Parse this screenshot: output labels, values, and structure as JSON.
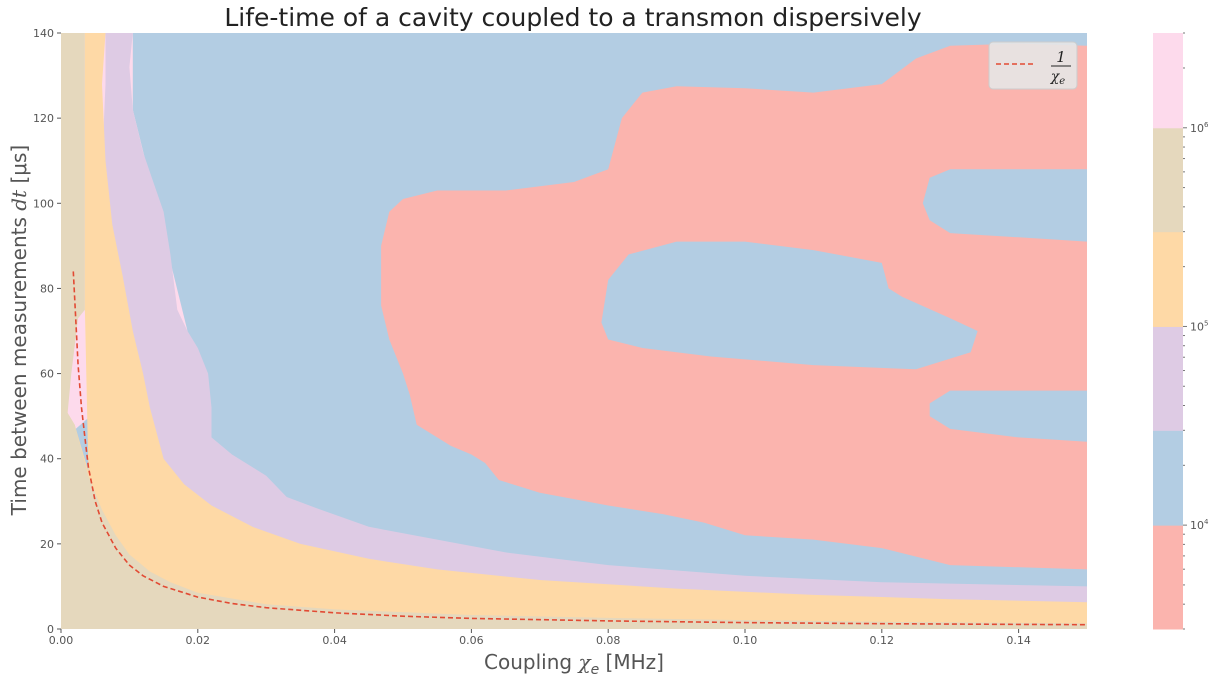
{
  "chart_data": {
    "type": "contour",
    "title": "Life-time of a cavity coupled to a transmon dispersively",
    "xlabel_prefix": "Coupling ",
    "xlabel_symbol": "χ",
    "xlabel_sub": "e",
    "xlabel_suffix": " [MHz]",
    "ylabel_prefix": "Time between measurements ",
    "ylabel_symbol": "dt",
    "ylabel_suffix": " [μs]",
    "xlim": [
      0,
      0.15
    ],
    "ylim": [
      0,
      140
    ],
    "x_ticks": [
      "0.00",
      "0.02",
      "0.04",
      "0.06",
      "0.08",
      "0.10",
      "0.12",
      "0.14"
    ],
    "x_tick_values": [
      0,
      0.02,
      0.04,
      0.06,
      0.08,
      0.1,
      0.12,
      0.14
    ],
    "y_ticks": [
      "0",
      "20",
      "40",
      "60",
      "80",
      "100",
      "120",
      "140"
    ],
    "y_tick_values": [
      0,
      20,
      40,
      60,
      80,
      100,
      120,
      140
    ],
    "grid": false,
    "legend_position": "top-right",
    "legend": {
      "numerator": "1",
      "symbol": "χ",
      "sub": "e",
      "color": "#e24a33"
    },
    "colorbar": {
      "scale": "log",
      "range": [
        3000,
        3000000
      ],
      "levels": [
        3000,
        10000,
        30000,
        100000,
        300000,
        1000000,
        3000000
      ],
      "colors": [
        "#fbb4ae",
        "#b3cde3",
        "#decbe4",
        "#fed9a6",
        "#e5d8bd",
        "#fddaec"
      ],
      "tick_labels": [
        {
          "base": "10",
          "exp": "4",
          "value": 10000
        },
        {
          "base": "10",
          "exp": "5",
          "value": 100000
        },
        {
          "base": "10",
          "exp": "6",
          "value": 1000000
        }
      ]
    },
    "series": [
      {
        "style": "dashed",
        "color": "#e24a33",
        "x": [
          0.0018,
          0.0025,
          0.003,
          0.0035,
          0.004,
          0.005,
          0.006,
          0.008,
          0.01,
          0.012,
          0.015,
          0.02,
          0.025,
          0.03,
          0.04,
          0.05,
          0.06,
          0.08,
          0.1,
          0.12,
          0.14,
          0.15
        ],
        "y": [
          84,
          62,
          52,
          45,
          38,
          30,
          25,
          19,
          15,
          12.5,
          10,
          7.5,
          6,
          5,
          3.8,
          3,
          2.5,
          1.9,
          1.5,
          1.25,
          1.07,
          1.0
        ]
      }
    ],
    "regions": {
      "level5_upper": [
        [
          0,
          140
        ],
        [
          0.0035,
          140
        ],
        [
          0.0035,
          75
        ],
        [
          0.0025,
          73
        ],
        [
          0.0015,
          60
        ],
        [
          0.0008,
          48
        ],
        [
          0,
          44
        ]
      ],
      "level5_lower": [
        [
          0,
          50
        ],
        [
          0.0005,
          52
        ],
        [
          0.002,
          48
        ],
        [
          0.003,
          42
        ],
        [
          0.004,
          36
        ],
        [
          0.006,
          28
        ],
        [
          0.008,
          22
        ],
        [
          0.01,
          17.5
        ],
        [
          0.013,
          13.5
        ],
        [
          0.016,
          11
        ],
        [
          0.02,
          8.5
        ],
        [
          0.03,
          5.8
        ],
        [
          0.04,
          4.6
        ],
        [
          0.06,
          3.3
        ],
        [
          0.08,
          2.6
        ],
        [
          0.1,
          2.1
        ],
        [
          0.12,
          1.7
        ],
        [
          0.15,
          1.3
        ],
        [
          0.15,
          0
        ],
        [
          0,
          0
        ]
      ],
      "level4": [
        [
          0.0035,
          140
        ],
        [
          0.0065,
          140
        ],
        [
          0.006,
          128
        ],
        [
          0.0065,
          110
        ],
        [
          0.0075,
          95
        ],
        [
          0.009,
          83
        ],
        [
          0.0105,
          70
        ],
        [
          0.012,
          60
        ],
        [
          0.013,
          52
        ],
        [
          0.015,
          40
        ],
        [
          0.018,
          34
        ],
        [
          0.022,
          29
        ],
        [
          0.028,
          24
        ],
        [
          0.035,
          20
        ],
        [
          0.045,
          16.5
        ],
        [
          0.055,
          14
        ],
        [
          0.07,
          11.5
        ],
        [
          0.09,
          9.5
        ],
        [
          0.11,
          8
        ],
        [
          0.13,
          7
        ],
        [
          0.15,
          6.3
        ],
        [
          0.15,
          0
        ],
        [
          0,
          0
        ],
        [
          0,
          50
        ],
        [
          0.0005,
          52
        ],
        [
          0.002,
          48
        ],
        [
          0.004,
          37
        ],
        [
          0.0035,
          75
        ]
      ],
      "level3": [
        [
          0.0065,
          140
        ],
        [
          0.0105,
          140
        ],
        [
          0.01,
          132
        ],
        [
          0.0105,
          122
        ],
        [
          0.012,
          112
        ],
        [
          0.0135,
          105
        ],
        [
          0.015,
          98
        ],
        [
          0.016,
          88
        ],
        [
          0.017,
          75
        ],
        [
          0.0185,
          70
        ],
        [
          0.02,
          66
        ],
        [
          0.0215,
          60
        ],
        [
          0.022,
          52
        ],
        [
          0.022,
          45
        ],
        [
          0.025,
          41
        ],
        [
          0.03,
          36
        ],
        [
          0.033,
          31
        ],
        [
          0.038,
          28
        ],
        [
          0.045,
          24
        ],
        [
          0.055,
          21
        ],
        [
          0.065,
          18
        ],
        [
          0.08,
          15
        ],
        [
          0.1,
          12.5
        ],
        [
          0.12,
          11
        ],
        [
          0.15,
          10
        ],
        [
          0.15,
          0
        ],
        [
          0,
          0
        ],
        [
          0,
          44
        ],
        [
          0.004,
          36
        ],
        [
          0.0065,
          128
        ]
      ],
      "level2": [
        [
          0.0105,
          140
        ],
        [
          0.15,
          140
        ],
        [
          0.15,
          0
        ],
        [
          0,
          0
        ],
        [
          0,
          44
        ],
        [
          0.0185,
          70
        ],
        [
          0.0105,
          122
        ]
      ],
      "level1": [
        [
          0.0468,
          76
        ],
        [
          0.0468,
          90
        ],
        [
          0.048,
          98
        ],
        [
          0.05,
          101
        ],
        [
          0.055,
          103
        ],
        [
          0.065,
          103
        ],
        [
          0.075,
          105
        ],
        [
          0.08,
          108
        ],
        [
          0.082,
          120
        ],
        [
          0.085,
          126
        ],
        [
          0.09,
          127.5
        ],
        [
          0.1,
          127
        ],
        [
          0.11,
          126
        ],
        [
          0.12,
          128
        ],
        [
          0.125,
          134
        ],
        [
          0.13,
          137
        ],
        [
          0.14,
          137.5
        ],
        [
          0.15,
          137
        ],
        [
          0.15,
          14
        ],
        [
          0.13,
          15
        ],
        [
          0.12,
          19
        ],
        [
          0.11,
          21
        ],
        [
          0.1,
          22
        ],
        [
          0.094,
          25
        ],
        [
          0.088,
          27
        ],
        [
          0.08,
          29
        ],
        [
          0.07,
          32
        ],
        [
          0.064,
          35
        ],
        [
          0.062,
          39
        ],
        [
          0.06,
          41
        ],
        [
          0.057,
          43
        ],
        [
          0.052,
          48
        ],
        [
          0.051,
          55
        ],
        [
          0.05,
          60
        ],
        [
          0.048,
          68
        ]
      ],
      "holes": [
        [
          [
            0.079,
            72
          ],
          [
            0.08,
            82
          ],
          [
            0.083,
            88
          ],
          [
            0.09,
            91
          ],
          [
            0.1,
            91
          ],
          [
            0.11,
            89
          ],
          [
            0.12,
            86
          ],
          [
            0.121,
            80
          ],
          [
            0.123,
            78
          ],
          [
            0.13,
            73
          ],
          [
            0.134,
            70
          ],
          [
            0.133,
            65
          ],
          [
            0.125,
            61
          ],
          [
            0.11,
            62
          ],
          [
            0.095,
            64
          ],
          [
            0.085,
            66
          ],
          [
            0.08,
            68
          ]
        ],
        [
          [
            0.127,
            106
          ],
          [
            0.13,
            108
          ],
          [
            0.15,
            108
          ],
          [
            0.15,
            91
          ],
          [
            0.14,
            92
          ],
          [
            0.13,
            93
          ],
          [
            0.127,
            96
          ],
          [
            0.126,
            100
          ]
        ],
        [
          [
            0.127,
            53
          ],
          [
            0.13,
            56
          ],
          [
            0.15,
            56
          ],
          [
            0.15,
            44
          ],
          [
            0.14,
            45
          ],
          [
            0.13,
            47
          ],
          [
            0.127,
            50
          ]
        ],
        [
          [
            0.12,
            130
          ],
          [
            0.125,
            137
          ],
          [
            0.13,
            138
          ],
          [
            0.145,
            138
          ],
          [
            0.15,
            139
          ],
          [
            0.15,
            140
          ],
          [
            0.115,
            140
          ]
        ]
      ]
    }
  }
}
